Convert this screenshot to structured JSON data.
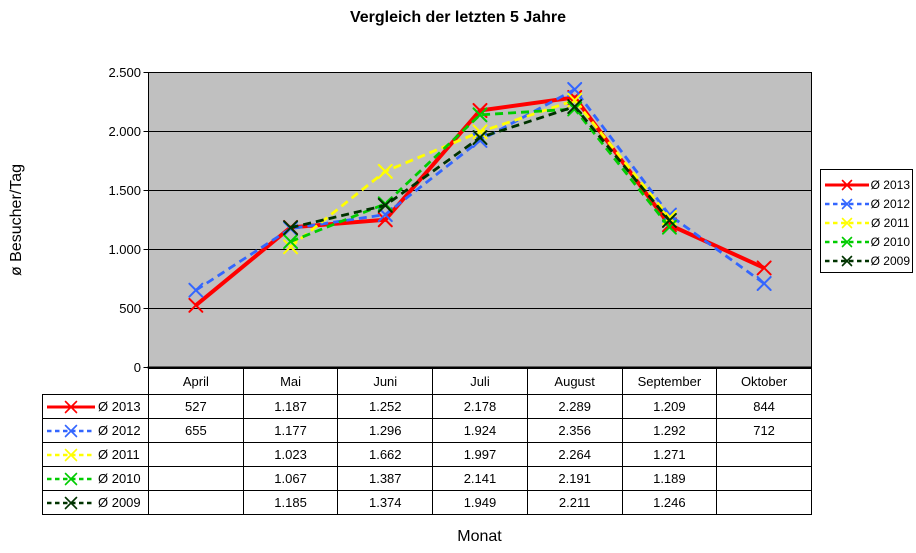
{
  "chart_data": {
    "type": "line",
    "title": "Vergleich der letzten 5 Jahre",
    "xlabel": "Monat",
    "ylabel": "ø Besucher/Tag",
    "categories": [
      "April",
      "Mai",
      "Juni",
      "Juli",
      "August",
      "September",
      "Oktober"
    ],
    "ylim": [
      0,
      2500
    ],
    "ytick_step": 500,
    "ytick_labels": [
      "0",
      "500",
      "1.000",
      "1.500",
      "2.000",
      "2.500"
    ],
    "grid": "horizontal-on",
    "legend_position": "right",
    "plot_bg_color": "#c0c0c0",
    "axis_color": "#000000",
    "marker": "x",
    "series": [
      {
        "name": "Ø 2013",
        "color": "#ff0000",
        "style": "solid",
        "values": [
          527,
          1187,
          1252,
          2178,
          2289,
          1209,
          844
        ],
        "labels": [
          "527",
          "1.187",
          "1.252",
          "2.178",
          "2.289",
          "1.209",
          "844"
        ]
      },
      {
        "name": "Ø 2012",
        "color": "#3366ff",
        "style": "dashed",
        "values": [
          655,
          1177,
          1296,
          1924,
          2356,
          1292,
          712
        ],
        "labels": [
          "655",
          "1.177",
          "1.296",
          "1.924",
          "2.356",
          "1.292",
          "712"
        ]
      },
      {
        "name": "Ø 2011",
        "color": "#ffff00",
        "style": "dashed",
        "values": [
          null,
          1023,
          1662,
          1997,
          2264,
          1271,
          null
        ],
        "labels": [
          "",
          "1.023",
          "1.662",
          "1.997",
          "2.264",
          "1.271",
          ""
        ]
      },
      {
        "name": "Ø 2010",
        "color": "#00cc00",
        "style": "dashed",
        "values": [
          null,
          1067,
          1387,
          2141,
          2191,
          1189,
          null
        ],
        "labels": [
          "",
          "1.067",
          "1.387",
          "2.141",
          "2.191",
          "1.189",
          ""
        ]
      },
      {
        "name": "Ø 2009",
        "color": "#003300",
        "style": "dashed",
        "values": [
          null,
          1185,
          1374,
          1949,
          2211,
          1246,
          null
        ],
        "labels": [
          "",
          "1.185",
          "1.374",
          "1.949",
          "2.211",
          "1.246",
          ""
        ]
      }
    ]
  }
}
